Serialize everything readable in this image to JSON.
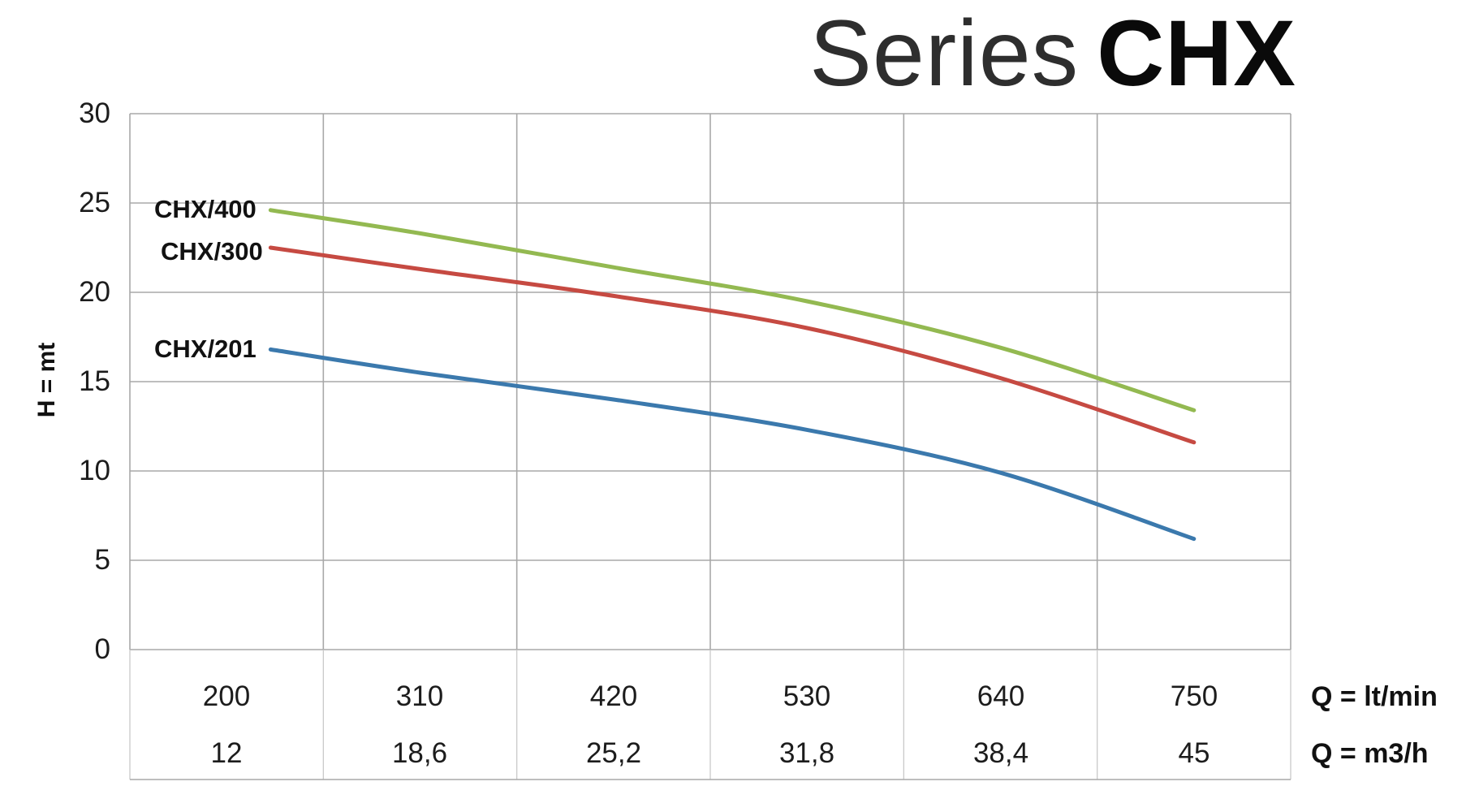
{
  "title": {
    "light": "Series",
    "bold": "CHX"
  },
  "labels": {
    "q_ltmin": "Q = lt/min",
    "q_m3h": "Q = m3/h"
  },
  "chart_data": {
    "type": "line",
    "title": "Series CHX",
    "ylabel": "H = mt",
    "ylim": [
      0,
      30
    ],
    "y_ticks": [
      30,
      25,
      20,
      15,
      10,
      5,
      0
    ],
    "xlim_lt_min": [
      145,
      805
    ],
    "x_ticks_lt_min": [
      200,
      310,
      420,
      530,
      640,
      750
    ],
    "x_ticks_m3_h": [
      "12",
      "18,6",
      "25,2",
      "31,8",
      "38,4",
      "45"
    ],
    "x_unit_labels": [
      "Q = lt/min",
      "Q = m3/h"
    ],
    "grid": true,
    "legend_position": "curve-start-labels",
    "series": [
      {
        "name": "CHX/400",
        "color": "#93b951",
        "x_lt_min": [
          225,
          310,
          420,
          530,
          640,
          750
        ],
        "h_mt": [
          24.6,
          23.3,
          21.4,
          19.5,
          16.9,
          13.4
        ]
      },
      {
        "name": "CHX/300",
        "color": "#c64a42",
        "x_lt_min": [
          225,
          310,
          420,
          530,
          640,
          750
        ],
        "h_mt": [
          22.5,
          21.3,
          19.8,
          18.0,
          15.2,
          11.6
        ]
      },
      {
        "name": "CHX/201",
        "color": "#3b79ad",
        "x_lt_min": [
          225,
          310,
          420,
          530,
          640,
          750
        ],
        "h_mt": [
          16.8,
          15.5,
          14.0,
          12.3,
          9.9,
          6.2
        ]
      }
    ]
  }
}
